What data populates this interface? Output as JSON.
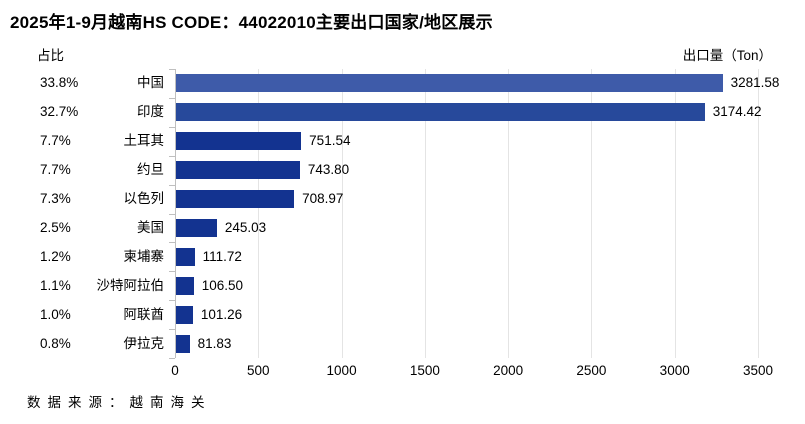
{
  "title": "2025年1-9月越南HS CODE：44022010主要出口国家/地区展示",
  "share_header": "占比",
  "unit_label": "出口量（Ton）",
  "source": "数据来源：越南海关",
  "chart_data": {
    "type": "bar",
    "orientation": "horizontal",
    "title": "2025年1-9月越南HS CODE：44022010主要出口国家/地区展示",
    "xlabel": "出口量（Ton）",
    "categories": [
      "中国",
      "印度",
      "土耳其",
      "约旦",
      "以色列",
      "美国",
      "柬埔寨",
      "沙特阿拉伯",
      "阿联酋",
      "伊拉克"
    ],
    "values": [
      3281.58,
      3174.42,
      751.54,
      743.8,
      708.97,
      245.03,
      111.72,
      106.5,
      101.26,
      81.83
    ],
    "shares": [
      "33.8%",
      "32.7%",
      "7.7%",
      "7.7%",
      "7.3%",
      "2.5%",
      "1.2%",
      "1.1%",
      "1.0%",
      "0.8%"
    ],
    "x_ticks": [
      0,
      500,
      1000,
      1500,
      2000,
      2500,
      3000,
      3500
    ],
    "xlim": [
      0,
      3500
    ],
    "grid": true,
    "legend": false,
    "bar_colors": [
      "#3E5BA9",
      "#27499B",
      "#133390",
      "#133390",
      "#133390",
      "#133390",
      "#133390",
      "#133390",
      "#133390",
      "#133390"
    ],
    "axis_color": "#BFBFBF",
    "gridline_color": "#E4E4E4",
    "text_color": "#000000"
  }
}
